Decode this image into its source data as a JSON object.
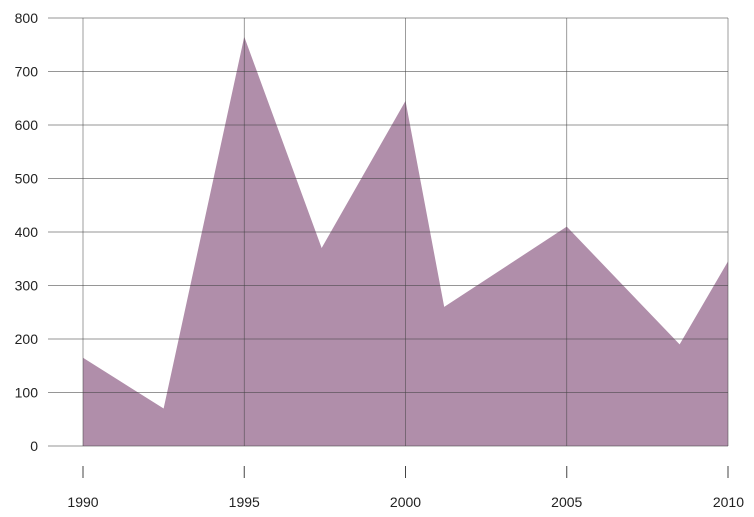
{
  "chart_data": {
    "type": "area",
    "title": "",
    "xlabel": "",
    "ylabel": "",
    "xlim": [
      1990,
      2010
    ],
    "ylim": [
      0,
      800
    ],
    "x_ticks": [
      1990,
      1995,
      2000,
      2005,
      2010
    ],
    "y_ticks": [
      0,
      100,
      200,
      300,
      400,
      500,
      600,
      700,
      800
    ],
    "x_tick_labels": [
      "1990",
      "1995",
      "2000",
      "2005",
      "2010"
    ],
    "y_tick_labels": [
      "0",
      "100",
      "200",
      "300",
      "400",
      "500",
      "600",
      "700",
      "800"
    ],
    "grid": true,
    "legend": "none",
    "series": [
      {
        "color": "#b08eaa",
        "x": [
          1990,
          1992.5,
          1995,
          1997.4,
          2000,
          2001.2,
          2005,
          2008.5,
          2010
        ],
        "y": [
          165,
          70,
          765,
          370,
          645,
          260,
          410,
          190,
          345
        ]
      }
    ]
  }
}
